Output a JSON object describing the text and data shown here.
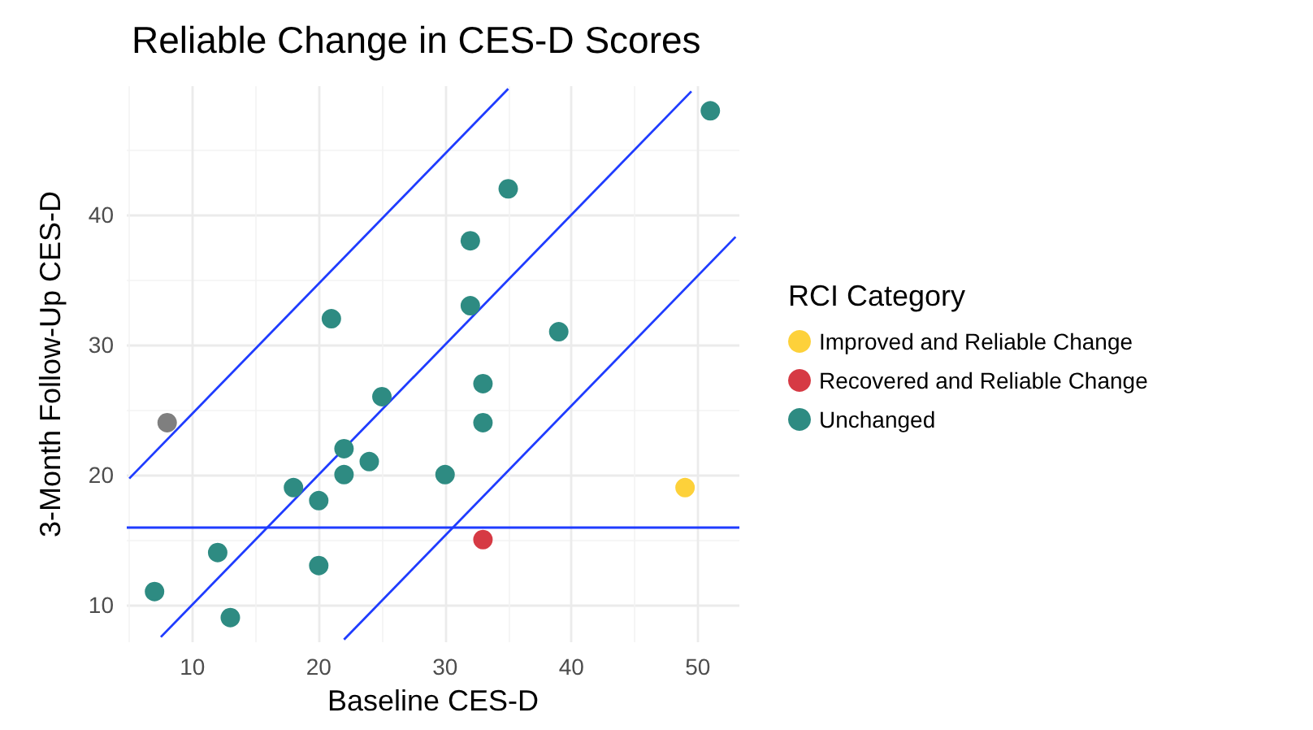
{
  "chart_data": {
    "type": "scatter",
    "title": "Reliable Change in CES-D Scores",
    "xlabel": "Baseline CES-D",
    "ylabel": "3-Month Follow-Up CES-D",
    "legend_title": "RCI Category",
    "series": [
      {
        "name": "Improved and Reliable Change",
        "color": "#fdd13a",
        "x": [
          49
        ],
        "values": [
          19
        ]
      },
      {
        "name": "Recovered and Reliable Change",
        "color": "#d63a44",
        "x": [
          33
        ],
        "values": [
          15
        ]
      },
      {
        "name": "Unchanged",
        "color": "#2e8b82",
        "x": [
          7,
          12,
          13,
          18,
          20,
          20,
          21,
          22,
          22,
          24,
          25,
          30,
          32,
          32,
          33,
          33,
          35,
          39,
          51
        ],
        "values": [
          11,
          14,
          9,
          19,
          18,
          13,
          32,
          22,
          20,
          21,
          26,
          20,
          38,
          33,
          27,
          24,
          42,
          31,
          48
        ]
      },
      {
        "color": "#7f7f7f",
        "x": [
          8
        ],
        "values": [
          24
        ]
      },
      {
        "type": "line",
        "marker": "none",
        "color": "#1f3cff",
        "x": [
          5,
          35
        ],
        "values": [
          19.7,
          49.7
        ]
      },
      {
        "type": "line",
        "marker": "none",
        "color": "#1f3cff",
        "x": [
          7.5,
          49.5
        ],
        "values": [
          7.5,
          49.5
        ]
      },
      {
        "type": "line",
        "marker": "none",
        "color": "#1f3cff",
        "x": [
          22,
          53
        ],
        "values": [
          7.3,
          38.3
        ]
      }
    ],
    "ref_lines": [
      {
        "axis": "y",
        "value": 16,
        "color": "#1f3cff"
      }
    ],
    "xlim": [
      4.8,
      53.3
    ],
    "ylim": [
      7.1,
      49.9
    ],
    "xticks": [
      10,
      20,
      30,
      40,
      50
    ],
    "yticks": [
      10,
      20,
      30,
      40
    ],
    "grid": true,
    "legend": "right",
    "marker": "circle"
  }
}
